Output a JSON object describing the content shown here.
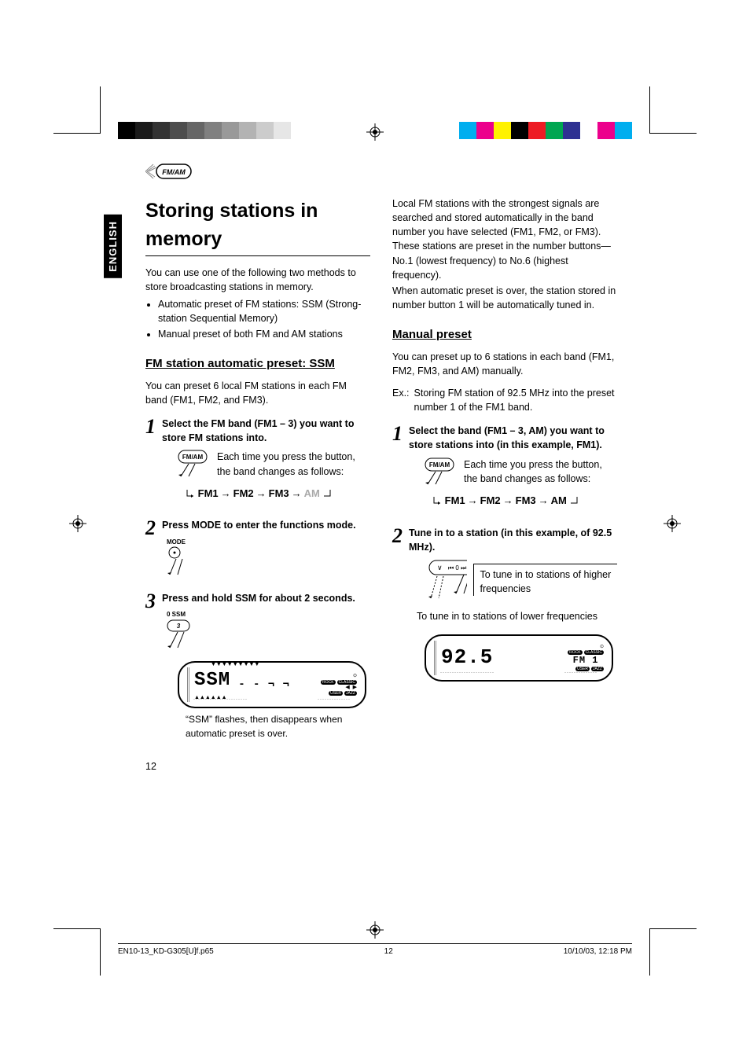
{
  "language_tab": "ENGLISH",
  "colorbar_left": [
    "#000000",
    "#1a1a1a",
    "#333333",
    "#4d4d4d",
    "#666666",
    "#808080",
    "#999999",
    "#b3b3b3",
    "#cccccc",
    "#e6e6e6",
    "#ffffff"
  ],
  "colorbar_right": [
    "#00aeef",
    "#ec008c",
    "#fff200",
    "#000000",
    "#ed1c24",
    "#00a651",
    "#2e3192",
    "#ffffff",
    "#ec008c",
    "#00aeef"
  ],
  "section_title": "Storing stations in memory",
  "intro": "You can use one of the following two methods to store broadcasting stations in memory.",
  "intro_bullets": [
    "Automatic preset of FM stations: SSM (Strong-station Sequential Memory)",
    "Manual preset of both FM and AM stations"
  ],
  "ssm": {
    "heading": "FM station automatic preset: SSM",
    "desc": "You can preset 6 local FM stations in each FM band (FM1, FM2, and FM3).",
    "step1_lead": "Select the FM band (FM1 – 3) you want to store FM stations into.",
    "step1_note": "Each time you press the button, the band changes as follows:",
    "cycle": {
      "items": [
        "FM1",
        "FM2",
        "FM3"
      ],
      "last": "AM"
    },
    "step2_lead": "Press MODE to enter the functions mode.",
    "step3_lead": "Press and hold SSM for about 2 seconds.",
    "display_text": "SSM",
    "display_sub": "- - ¬ ¬",
    "caption": "“SSM” flashes, then disappears when automatic preset is over."
  },
  "right_intro": [
    "Local FM stations with the strongest signals are searched and stored automatically in the band number you have selected (FM1, FM2, or FM3). These stations are preset in the number buttons—No.1 (lowest frequency) to No.6 (highest frequency).",
    "When automatic preset is over, the station stored in number button 1 will be automatically tuned in."
  ],
  "manual": {
    "heading": "Manual preset",
    "desc": "You can preset up to 6 stations in each band (FM1, FM2, FM3, and AM) manually.",
    "ex_label": "Ex.:",
    "ex_text": "Storing FM station of 92.5 MHz into the preset number 1 of the FM1 band.",
    "step1_lead": "Select the band (FM1 – 3, AM) you want to store stations into (in this example, FM1).",
    "step1_note": "Each time you press the button, the band changes as follows:",
    "cycle": {
      "items": [
        "FM1",
        "FM2",
        "FM3",
        "AM"
      ]
    },
    "step2_lead": "Tune in to a station (in this example, of 92.5 MHz).",
    "tune_hi": "To tune in to stations of higher frequencies",
    "tune_lo": "To tune in to stations of lower frequencies",
    "display_freq": "92.5",
    "display_band": "FM 1"
  },
  "disp_tags": {
    "top": [
      "ROCK",
      "CLASSIC"
    ],
    "bottom": [
      "USER",
      "JAZZ"
    ]
  },
  "page_number": "12",
  "footer": {
    "left": "EN10-13_KD-G305[U]f.p65",
    "mid": "12",
    "right": "10/10/03, 12:18 PM"
  }
}
